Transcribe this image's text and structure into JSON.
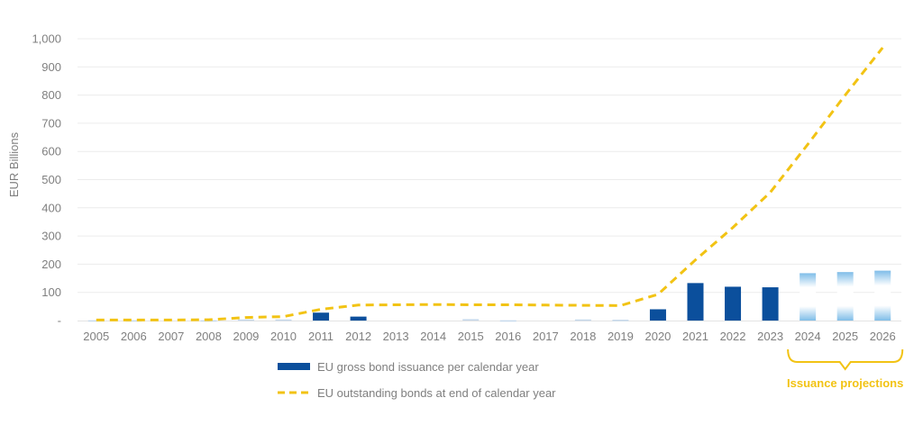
{
  "chart_data": {
    "type": "bar",
    "ylabel": "EUR Billions",
    "ylim": [
      0,
      1000
    ],
    "yticks": [
      {
        "value": 0,
        "label": "-"
      },
      {
        "value": 100,
        "label": "100"
      },
      {
        "value": 200,
        "label": "200"
      },
      {
        "value": 300,
        "label": "300"
      },
      {
        "value": 400,
        "label": "400"
      },
      {
        "value": 500,
        "label": "500"
      },
      {
        "value": 600,
        "label": "600"
      },
      {
        "value": 700,
        "label": "700"
      },
      {
        "value": 800,
        "label": "800"
      },
      {
        "value": 900,
        "label": "900"
      },
      {
        "value": 1000,
        "label": "1,000"
      }
    ],
    "grid": true,
    "categories": [
      "2005",
      "2006",
      "2007",
      "2008",
      "2009",
      "2010",
      "2011",
      "2012",
      "2013",
      "2014",
      "2015",
      "2016",
      "2017",
      "2018",
      "2019",
      "2020",
      "2021",
      "2022",
      "2023",
      "2024",
      "2025",
      "2026"
    ],
    "series": [
      {
        "name": "EU gross bond issuance per calendar year",
        "kind": "bar",
        "color": "#0b4f9c",
        "projection_color": "#8ec3ea",
        "values": [
          1,
          1,
          0,
          1,
          4,
          4,
          28,
          14,
          0,
          0,
          5,
          1,
          0,
          4,
          3,
          40,
          133,
          120,
          118,
          168,
          172,
          177
        ],
        "projected": [
          false,
          false,
          false,
          false,
          false,
          false,
          false,
          false,
          false,
          false,
          false,
          false,
          false,
          false,
          false,
          false,
          false,
          false,
          false,
          true,
          true,
          true
        ]
      },
      {
        "name": "EU outstanding bonds at end of calendar year",
        "kind": "line",
        "style": "dashed",
        "color": "#f2c314",
        "values": [
          2,
          2,
          2,
          3,
          11,
          14,
          40,
          55,
          56,
          57,
          56,
          56,
          55,
          54,
          53,
          93,
          215,
          330,
          455,
          625,
          800,
          968
        ]
      }
    ],
    "annotation": {
      "text": "Issuance projections",
      "span": [
        "2024",
        "2026"
      ],
      "color": "#f2c314"
    },
    "legend": "bottom"
  }
}
